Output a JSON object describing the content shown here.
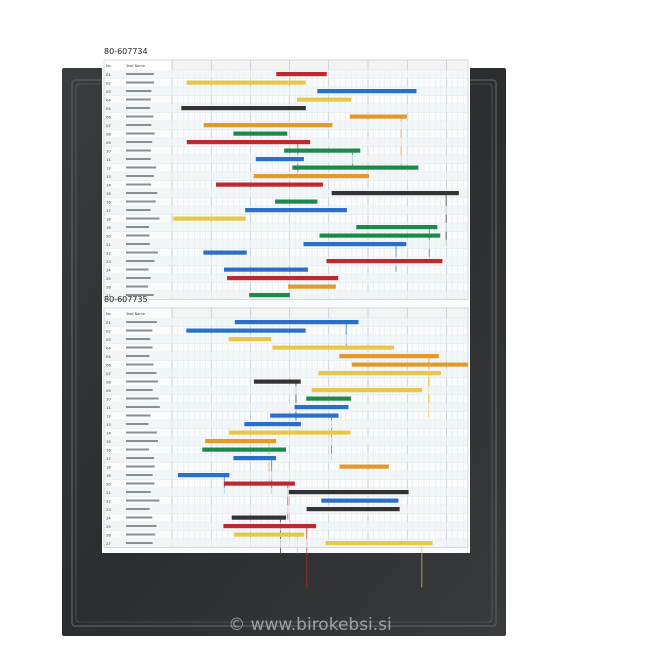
{
  "charts": [
    {
      "title": "80-607734",
      "header": {
        "no": "No",
        "task_name": "Task Name"
      },
      "rows": [
        "01",
        "02",
        "03",
        "04",
        "05",
        "06",
        "07",
        "08",
        "09",
        "10",
        "11",
        "12",
        "13",
        "14",
        "15",
        "16",
        "17",
        "18",
        "19",
        "20",
        "21",
        "22",
        "23",
        "24",
        "25",
        "26",
        "27"
      ]
    },
    {
      "title": "80-607735",
      "header": {
        "no": "No",
        "task_name": "Task Name"
      },
      "rows": [
        "01",
        "02",
        "03",
        "04",
        "05",
        "06",
        "07",
        "08",
        "09",
        "10",
        "11",
        "12",
        "13",
        "14",
        "15",
        "16",
        "17",
        "18",
        "19",
        "20",
        "21",
        "22",
        "23",
        "24",
        "25",
        "26",
        "27"
      ]
    }
  ],
  "watermark": "© www.birokebsi.si"
}
